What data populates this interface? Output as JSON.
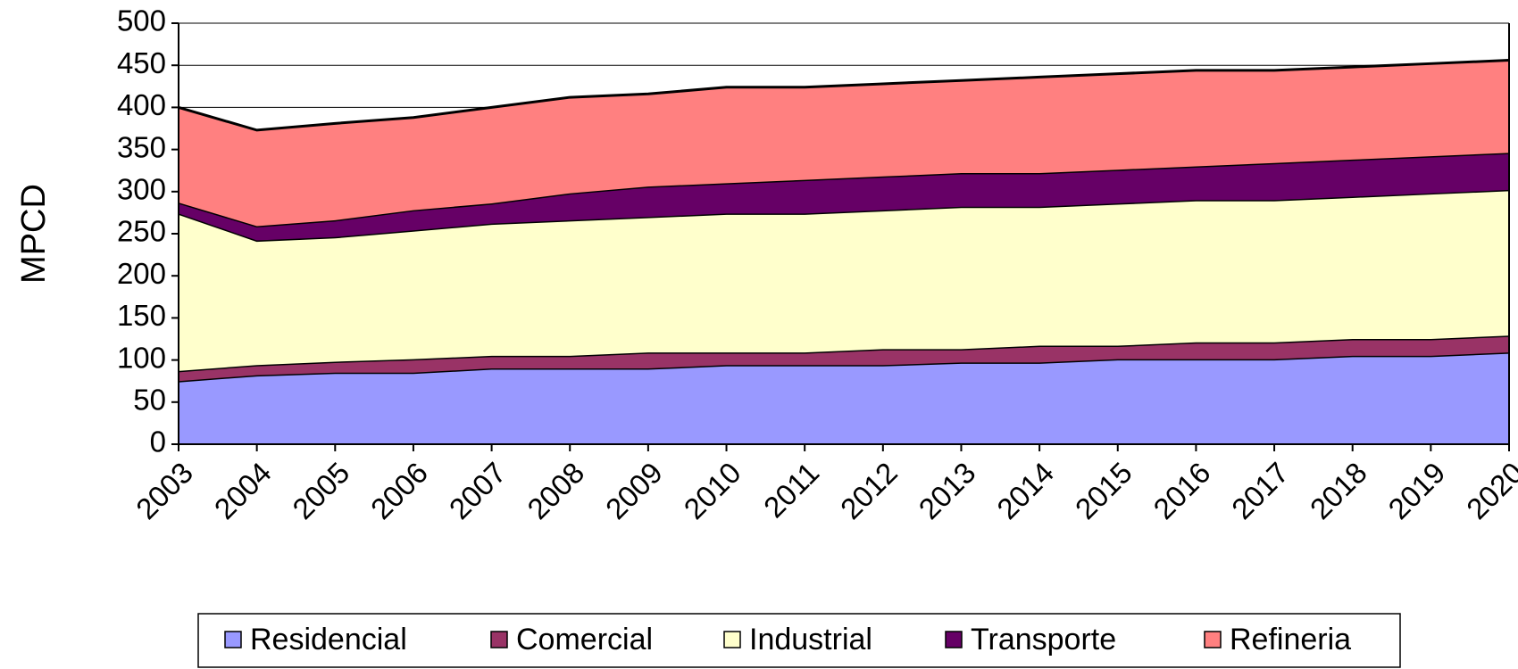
{
  "chart_data": {
    "type": "stacked_area",
    "y_label": "MPCD",
    "categories": [
      "2003",
      "2004",
      "2005",
      "2006",
      "2007",
      "2008",
      "2009",
      "2010",
      "2011",
      "2012",
      "2013",
      "2014",
      "2015",
      "2016",
      "2017",
      "2018",
      "2019",
      "2020"
    ],
    "series": [
      {
        "name": "Residencial",
        "color": "#9999ff",
        "values": [
          75,
          82,
          85,
          85,
          90,
          90,
          90,
          94,
          94,
          94,
          97,
          97,
          101,
          101,
          101,
          105,
          105,
          109
        ]
      },
      {
        "name": "Comercial",
        "color": "#993366",
        "values": [
          12,
          12,
          13,
          16,
          15,
          15,
          19,
          15,
          15,
          19,
          16,
          20,
          16,
          20,
          20,
          20,
          20,
          20
        ]
      },
      {
        "name": "Industrial",
        "color": "#ffffcc",
        "values": [
          187,
          148,
          148,
          153,
          157,
          161,
          161,
          165,
          165,
          165,
          169,
          165,
          169,
          169,
          169,
          169,
          173,
          173
        ]
      },
      {
        "name": "Transporte",
        "color": "#660066",
        "values": [
          13,
          17,
          20,
          24,
          24,
          32,
          36,
          36,
          40,
          40,
          40,
          40,
          40,
          40,
          44,
          44,
          44,
          44
        ]
      },
      {
        "name": "Refineria",
        "color": "#ff8080",
        "values": [
          113,
          114,
          115,
          110,
          114,
          114,
          110,
          114,
          110,
          110,
          110,
          114,
          114,
          114,
          110,
          110,
          110,
          110
        ]
      }
    ],
    "ylim": [
      0,
      500
    ],
    "yticks": [
      0,
      50,
      100,
      150,
      200,
      250,
      300,
      350,
      400,
      450,
      500
    ],
    "grid": true,
    "legend": "bottom"
  }
}
